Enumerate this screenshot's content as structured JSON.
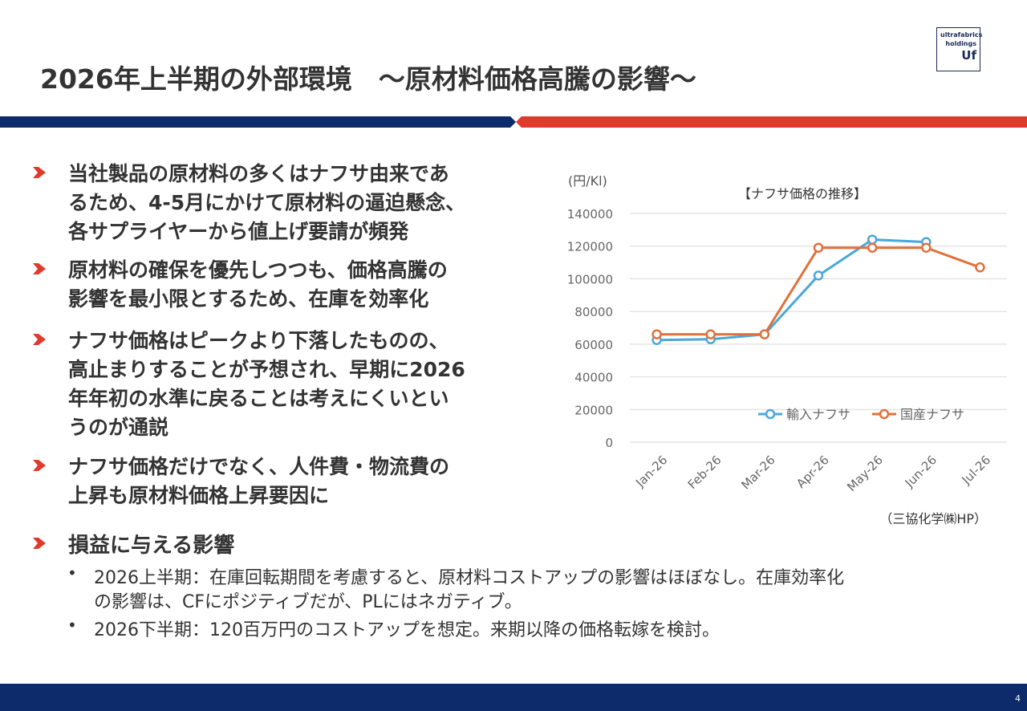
{
  "header": {
    "title": "2026年上半期の外部環境　～原材料価格高騰の影響～",
    "logo": [
      "ultrafabrics",
      "holdings",
      "Uf"
    ]
  },
  "bullets": [
    [
      "当社製品の原材料の多くはナフサ由来であ",
      "るため、4-5月にかけて原材料の逼迫懸念、",
      "各サプライヤーから値上げ要請が頻発"
    ],
    [
      "原材料の確保を優先しつつも、価格高騰の",
      "影響を最小限とするため、在庫を効率化"
    ],
    [
      "ナフサ価格はピークより下落したものの、",
      "高止まりすることが予想され、早期に2026",
      "年年初の水準に戻ることは考えにくいとい",
      "うのが通説"
    ],
    [
      "ナフサ価格だけでなく、人件費・物流費の",
      "上昇も原材料価格上昇要因に"
    ]
  ],
  "impact": {
    "title": "損益に与える影響",
    "items": [
      [
        "2026上半期：在庫回転期間を考慮すると、原材料コストアップの影響はほぼなし。在庫効率化",
        "の影響は、CFにポジティブだが、PLにはネガティブ。"
      ],
      [
        "2026下半期：120百万円のコストアップを想定。来期以降の価格転嫁を検討。"
      ]
    ]
  },
  "chart_data": {
    "type": "line",
    "title": "【ナフサ価格の推移】",
    "y_label": "(円/Kl)",
    "source": "（三協化学㈱HP）",
    "categories": [
      "Jan-26",
      "Feb-26",
      "Mar-26",
      "Apr-26",
      "May-26",
      "Jun-26",
      "Jul-26"
    ],
    "series": [
      {
        "name": "輸入ナフサ",
        "color": "#4aa8d8",
        "values": [
          62500,
          63000,
          66000,
          102000,
          124000,
          122500,
          null
        ]
      },
      {
        "name": "国産ナフサ",
        "color": "#e2703a",
        "values": [
          66000,
          66000,
          66000,
          119000,
          119000,
          119000,
          107000
        ]
      }
    ],
    "ylim": [
      0,
      140000
    ],
    "yticks": [
      0,
      20000,
      40000,
      60000,
      80000,
      100000,
      120000,
      140000
    ],
    "grid": true,
    "legend": "bottom-right"
  },
  "page_number": 4
}
